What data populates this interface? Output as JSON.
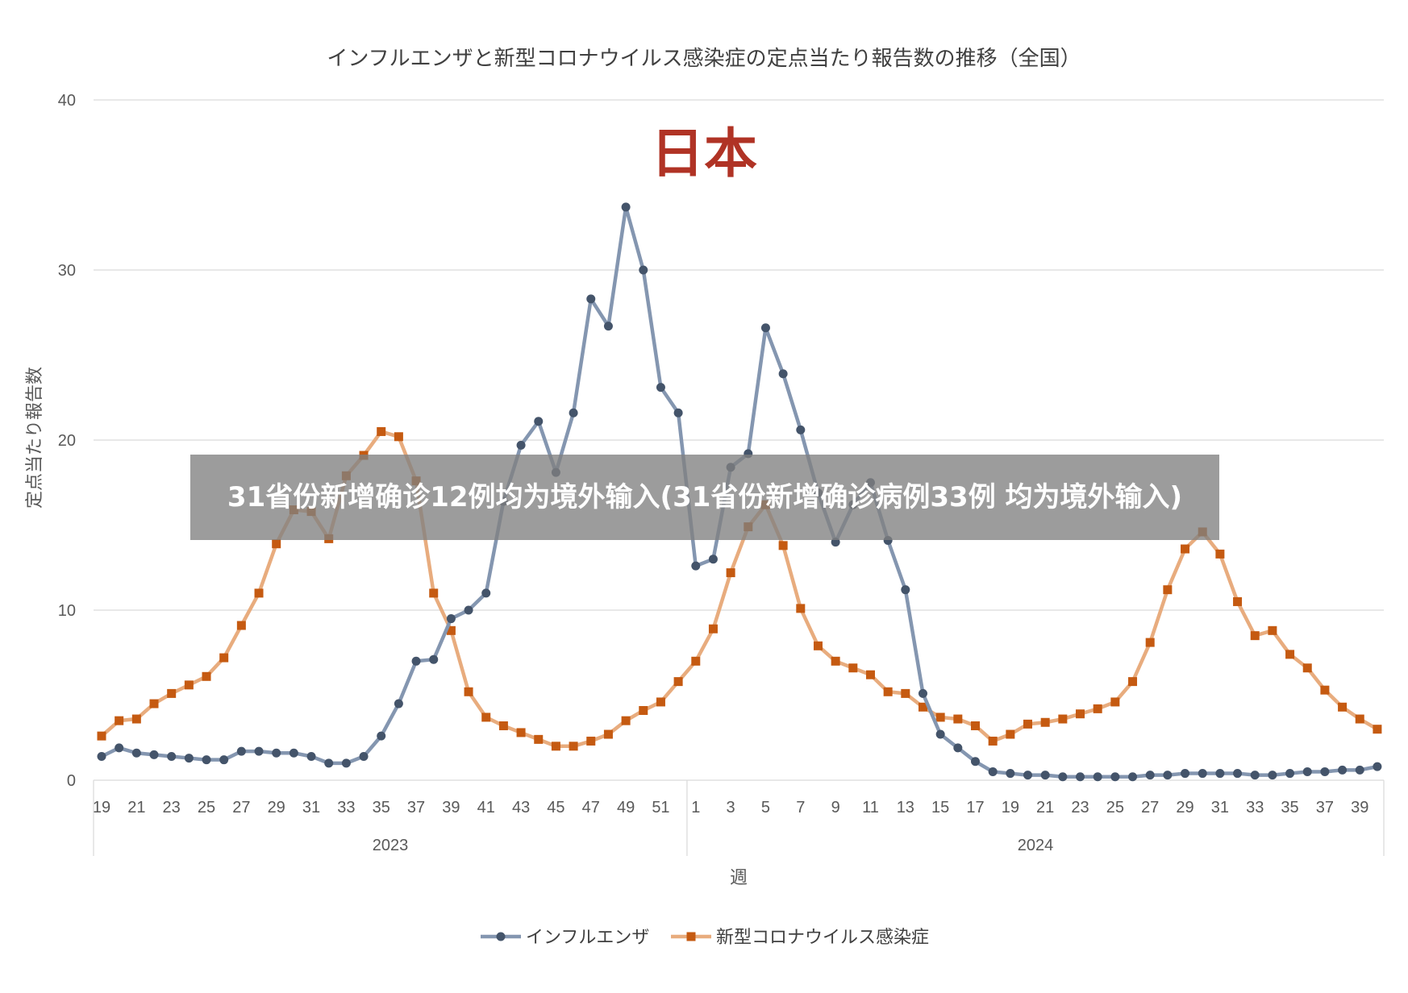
{
  "chart_data": {
    "type": "line",
    "title": "インフルエンザと新型コロナウイルス感染症の定点当たり報告数の推移（全国）",
    "annotation": "日本",
    "ylabel": "定点当たり報告数",
    "xlabel": "週",
    "ylim": [
      0,
      40
    ],
    "yticks": [
      0,
      10,
      20,
      30,
      40
    ],
    "grid": true,
    "legend_position": "bottom",
    "year_groups": [
      {
        "label": "2023",
        "weeks": "19-52"
      },
      {
        "label": "2024",
        "weeks": "1-40"
      }
    ],
    "x_tick_labels": [
      "19",
      "21",
      "23",
      "25",
      "27",
      "29",
      "31",
      "33",
      "35",
      "37",
      "39",
      "41",
      "43",
      "45",
      "47",
      "49",
      "51",
      "1",
      "3",
      "5",
      "7",
      "9",
      "11",
      "13",
      "15",
      "17",
      "19",
      "21",
      "23",
      "25",
      "27",
      "29",
      "31",
      "33",
      "35",
      "37",
      "39"
    ],
    "x": [
      "2023-19",
      "2023-20",
      "2023-21",
      "2023-22",
      "2023-23",
      "2023-24",
      "2023-25",
      "2023-26",
      "2023-27",
      "2023-28",
      "2023-29",
      "2023-30",
      "2023-31",
      "2023-32",
      "2023-33",
      "2023-34",
      "2023-35",
      "2023-36",
      "2023-37",
      "2023-38",
      "2023-39",
      "2023-40",
      "2023-41",
      "2023-42",
      "2023-43",
      "2023-44",
      "2023-45",
      "2023-46",
      "2023-47",
      "2023-48",
      "2023-49",
      "2023-50",
      "2023-51",
      "2023-52",
      "2024-1",
      "2024-2",
      "2024-3",
      "2024-4",
      "2024-5",
      "2024-6",
      "2024-7",
      "2024-8",
      "2024-9",
      "2024-10",
      "2024-11",
      "2024-12",
      "2024-13",
      "2024-14",
      "2024-15",
      "2024-16",
      "2024-17",
      "2024-18",
      "2024-19",
      "2024-20",
      "2024-21",
      "2024-22",
      "2024-23",
      "2024-24",
      "2024-25",
      "2024-26",
      "2024-27",
      "2024-28",
      "2024-29",
      "2024-30",
      "2024-31",
      "2024-32",
      "2024-33",
      "2024-34",
      "2024-35",
      "2024-36",
      "2024-37",
      "2024-38",
      "2024-39",
      "2024-40"
    ],
    "series": [
      {
        "name": "インフルエンザ",
        "color": "#8496b0",
        "marker": "circle",
        "marker_color": "#44546a",
        "values": [
          1.4,
          1.9,
          1.6,
          1.5,
          1.4,
          1.3,
          1.2,
          1.2,
          1.7,
          1.7,
          1.6,
          1.6,
          1.4,
          1.0,
          1.0,
          1.4,
          2.6,
          4.5,
          7.0,
          7.1,
          9.5,
          10.0,
          11.0,
          16.4,
          19.7,
          21.1,
          18.1,
          21.6,
          28.3,
          26.7,
          33.7,
          30.0,
          23.1,
          21.6,
          12.6,
          13.0,
          18.4,
          19.2,
          26.6,
          23.9,
          20.6,
          16.9,
          14.0,
          16.2,
          17.5,
          14.1,
          11.2,
          5.1,
          2.7,
          1.9,
          1.1,
          0.5,
          0.4,
          0.3,
          0.3,
          0.2,
          0.2,
          0.2,
          0.2,
          0.2,
          0.3,
          0.3,
          0.4,
          0.4,
          0.4,
          0.4,
          0.3,
          0.3,
          0.4,
          0.5,
          0.5,
          0.6,
          0.6,
          0.8
        ]
      },
      {
        "name": "新型コロナウイルス感染症",
        "color": "#e8ac7e",
        "marker": "square",
        "marker_color": "#c55a11",
        "values": [
          2.6,
          3.5,
          3.6,
          4.5,
          5.1,
          5.6,
          6.1,
          7.2,
          9.1,
          11.0,
          13.9,
          15.9,
          15.8,
          14.2,
          17.9,
          19.1,
          20.5,
          20.2,
          17.6,
          11.0,
          8.8,
          5.2,
          3.7,
          3.2,
          2.8,
          2.4,
          2.0,
          2.0,
          2.3,
          2.7,
          3.5,
          4.1,
          4.6,
          5.8,
          7.0,
          8.9,
          12.2,
          14.9,
          16.2,
          13.8,
          10.1,
          7.9,
          7.0,
          6.6,
          6.2,
          5.2,
          5.1,
          4.3,
          3.7,
          3.6,
          3.2,
          2.3,
          2.7,
          3.3,
          3.4,
          3.6,
          3.9,
          4.2,
          4.6,
          5.8,
          8.1,
          11.2,
          13.6,
          14.6,
          13.3,
          10.5,
          8.5,
          8.8,
          7.4,
          6.6,
          5.3,
          4.3,
          3.6,
          3.0
        ]
      }
    ]
  },
  "overlay": {
    "text": "31省份新增确诊12例均为境外输入(31省份新增确诊病例33例 均为境外输入)"
  }
}
